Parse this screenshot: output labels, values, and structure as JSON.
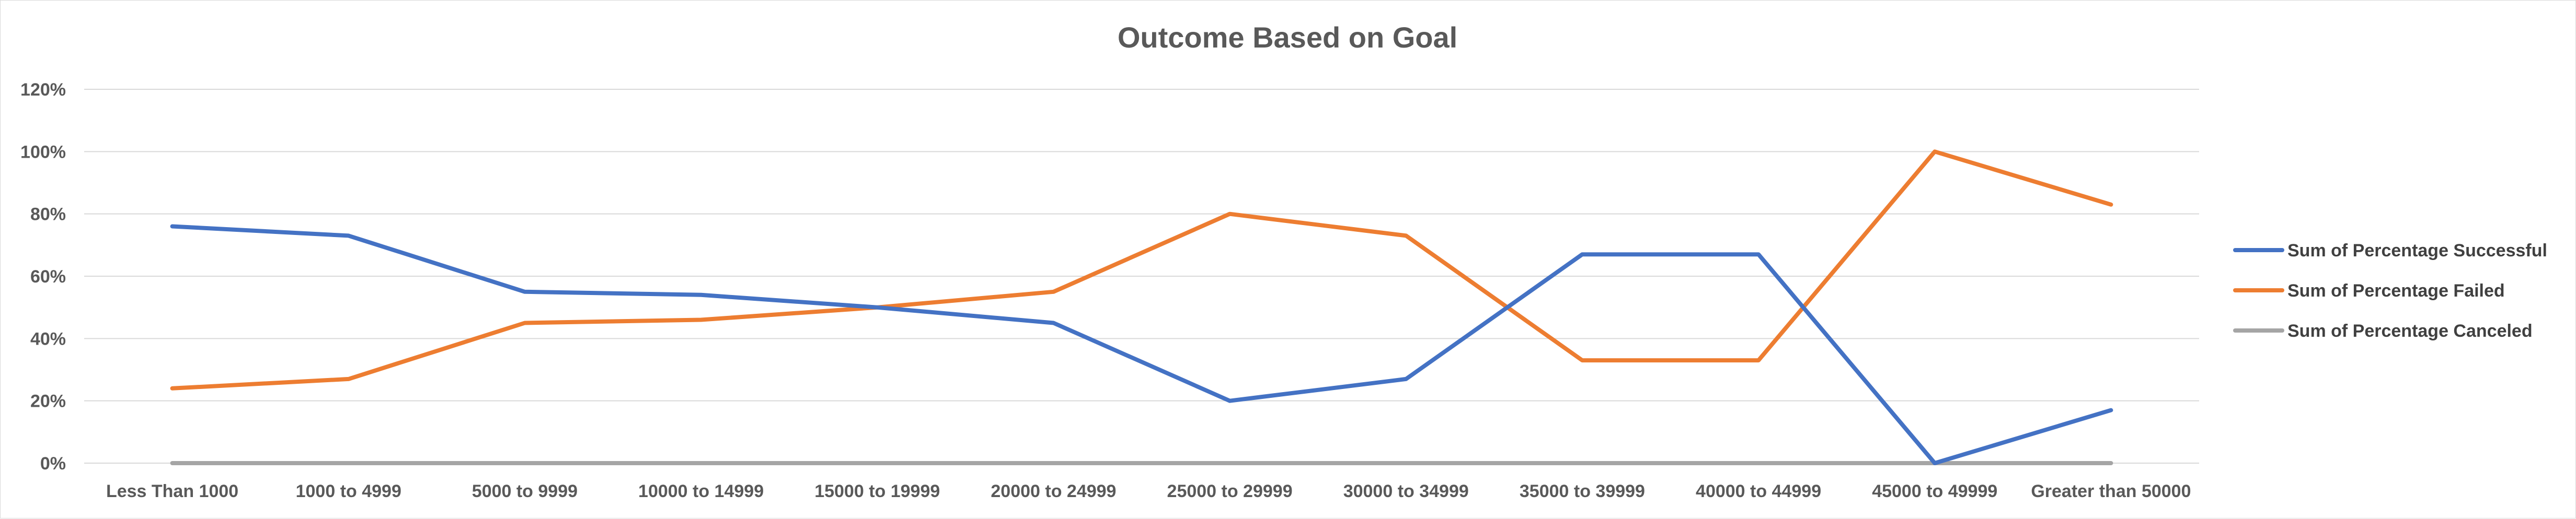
{
  "chart_data": {
    "type": "line",
    "title": "Outcome Based on Goal",
    "xlabel": "",
    "ylabel": "",
    "categories": [
      "Less Than 1000",
      "1000 to 4999",
      "5000 to 9999",
      "10000 to 14999",
      "15000 to 19999",
      "20000 to 24999",
      "25000 to 29999",
      "30000 to 34999",
      "35000 to 39999",
      "40000 to 44999",
      "45000 to 49999",
      "Greater than 50000"
    ],
    "y_ticks": [
      "0%",
      "20%",
      "40%",
      "60%",
      "80%",
      "100%",
      "120%"
    ],
    "y_tick_values": [
      0,
      20,
      40,
      60,
      80,
      100,
      120
    ],
    "ylim": [
      0,
      120
    ],
    "grid": true,
    "legend_position": "right",
    "series": [
      {
        "name": "Sum of Percentage Successful",
        "color": "#4472c4",
        "values": [
          76,
          73,
          55,
          54,
          50,
          45,
          20,
          27,
          67,
          67,
          0,
          17
        ]
      },
      {
        "name": "Sum of Percentage Failed",
        "color": "#ed7d31",
        "values": [
          24,
          27,
          45,
          46,
          50,
          55,
          80,
          73,
          33,
          33,
          100,
          83
        ]
      },
      {
        "name": "Sum of Percentage Canceled",
        "color": "#a5a5a5",
        "values": [
          0,
          0,
          0,
          0,
          0,
          0,
          0,
          0,
          0,
          0,
          0,
          0
        ]
      }
    ]
  }
}
